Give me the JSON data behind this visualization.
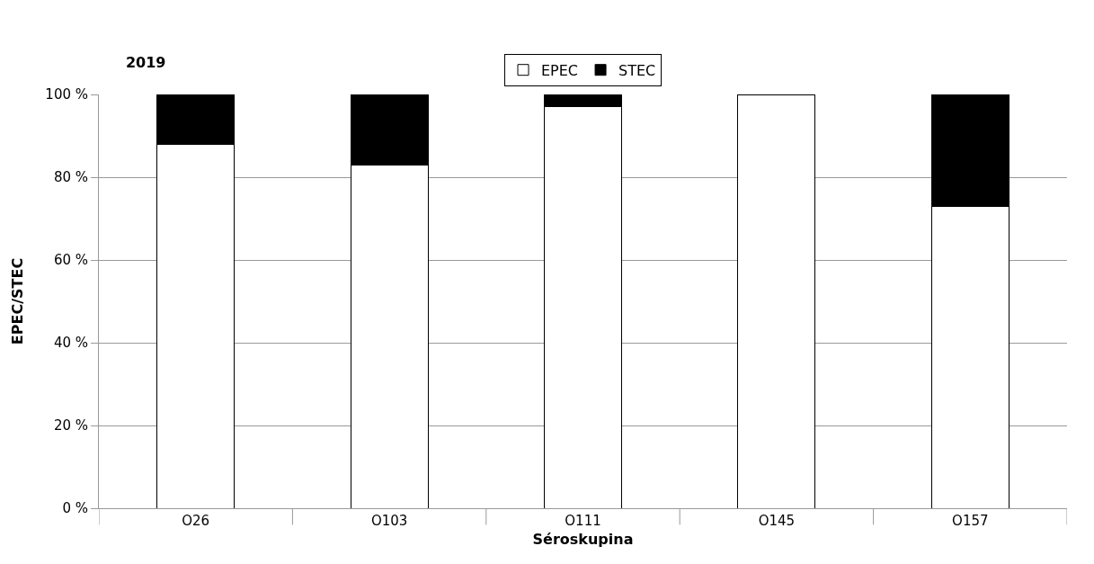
{
  "chart_data": {
    "type": "bar",
    "title": "2019",
    "xlabel": "Séroskupina",
    "ylabel": "EPEC/STEC",
    "categories": [
      "O26",
      "O103",
      "O111",
      "O145",
      "O157"
    ],
    "stacked": true,
    "series": [
      {
        "name": "EPEC",
        "color": "#ffffff",
        "values": [
          88,
          83,
          97,
          100,
          73
        ]
      },
      {
        "name": "STEC",
        "color": "#000000",
        "values": [
          12,
          17,
          3,
          0,
          27
        ]
      }
    ],
    "ylim": [
      0,
      100
    ],
    "yticks": [
      {
        "value": 0,
        "label": "0 %"
      },
      {
        "value": 20,
        "label": "20 %"
      },
      {
        "value": 40,
        "label": "40 %"
      },
      {
        "value": 60,
        "label": "60 %"
      },
      {
        "value": 80,
        "label": "80 %"
      },
      {
        "value": 100,
        "label": "100 %"
      }
    ],
    "grid": "y",
    "legend": "top"
  }
}
